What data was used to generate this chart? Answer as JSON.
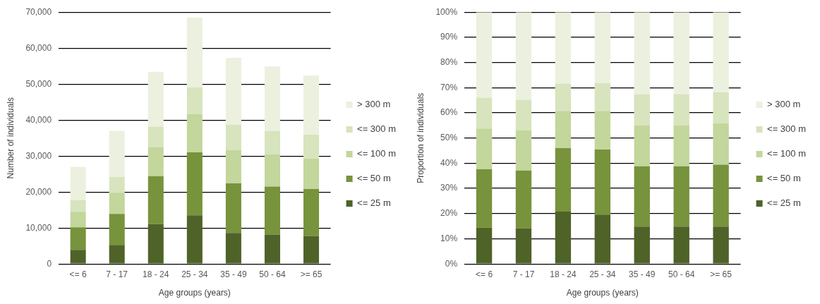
{
  "chart_data": [
    {
      "type": "bar",
      "stacked": true,
      "xlabel": "Age groups (years)",
      "ylabel": "Number of individuals",
      "categories": [
        "<= 6",
        "7 - 17",
        "18 - 24",
        "25 - 34",
        "35 - 49",
        "50 - 64",
        ">= 65"
      ],
      "series": [
        {
          "name": "<= 25 m",
          "color": "#4f6228",
          "values": [
            3900,
            5300,
            11100,
            13500,
            8600,
            8200,
            7800
          ]
        },
        {
          "name": "<= 50 m",
          "color": "#77933c",
          "values": [
            6300,
            8600,
            13300,
            17500,
            13800,
            13300,
            13000
          ]
        },
        {
          "name": "<= 100 m",
          "color": "#c3d69b",
          "values": [
            4300,
            5800,
            8100,
            10600,
            9200,
            9000,
            8500
          ]
        },
        {
          "name": "<= 300 m",
          "color": "#d7e4bd",
          "values": [
            3300,
            4500,
            5700,
            7500,
            7100,
            6500,
            6600
          ]
        },
        {
          "name": "> 300 m",
          "color": "#ebf1de",
          "values": [
            9200,
            12800,
            15200,
            19400,
            18600,
            17900,
            16500
          ]
        }
      ],
      "ylim": [
        0,
        70000
      ],
      "yticks": [
        0,
        {
          "value": 10000,
          "label": "10,000"
        },
        {
          "value": 20000,
          "label": "20,000"
        },
        {
          "value": 30000,
          "label": "30,000"
        },
        {
          "value": 40000,
          "label": "40,000"
        },
        {
          "value": 50000,
          "label": "50,000"
        },
        {
          "value": 60000,
          "label": "60,000"
        },
        {
          "value": 70000,
          "label": "70,000"
        }
      ],
      "grid": "y",
      "legend": "right"
    },
    {
      "type": "bar",
      "stacked": true,
      "xlabel": "Age groups (years)",
      "ylabel": "Proportion of individuals",
      "categories": [
        "<= 6",
        "7 - 17",
        "18 - 24",
        "25 - 34",
        "35 - 49",
        "50 - 64",
        ">= 65"
      ],
      "series": [
        {
          "name": "<= 25 m",
          "color": "#4f6228",
          "values": [
            14.4,
            14.1,
            20.8,
            19.6,
            14.8,
            14.8,
            14.8
          ]
        },
        {
          "name": "<= 50 m",
          "color": "#77933c",
          "values": [
            23.2,
            23.0,
            25.2,
            25.8,
            24.0,
            24.0,
            24.6
          ]
        },
        {
          "name": "<= 100 m",
          "color": "#c3d69b",
          "values": [
            16.2,
            15.9,
            14.8,
            15.4,
            16.3,
            16.3,
            16.5
          ]
        },
        {
          "name": "<= 300 m",
          "color": "#d7e4bd",
          "values": [
            12.2,
            12.2,
            10.8,
            11.0,
            12.3,
            12.3,
            12.2
          ]
        },
        {
          "name": "> 300 m",
          "color": "#ebf1de",
          "values": [
            34.0,
            34.8,
            28.4,
            28.2,
            32.6,
            32.6,
            31.9
          ]
        }
      ],
      "ylim": [
        0,
        100
      ],
      "yticks": [
        {
          "value": 0,
          "label": "0%"
        },
        {
          "value": 10,
          "label": "10%"
        },
        {
          "value": 20,
          "label": "20%"
        },
        {
          "value": 30,
          "label": "30%"
        },
        {
          "value": 40,
          "label": "40%"
        },
        {
          "value": 50,
          "label": "50%"
        },
        {
          "value": 60,
          "label": "60%"
        },
        {
          "value": 70,
          "label": "70%"
        },
        {
          "value": 80,
          "label": "80%"
        },
        {
          "value": 90,
          "label": "90%"
        },
        {
          "value": 100,
          "label": "100%"
        }
      ],
      "grid": "y",
      "legend": "right"
    }
  ]
}
